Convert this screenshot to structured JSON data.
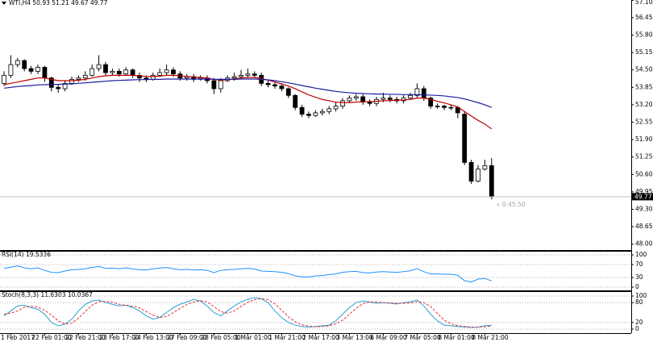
{
  "chart_data": [
    {
      "type": "candlestick",
      "title": "WTI,H4 50.93 51.21 49.67 49.77",
      "timer": "« 0:45:50",
      "categories": [
        null,
        "1 Feb 2017",
        null,
        null,
        null,
        null,
        "22 Feb 01:00",
        null,
        null,
        null,
        null,
        "22 Feb 21:00",
        null,
        null,
        null,
        null,
        "23 Feb 17:00",
        null,
        null,
        null,
        null,
        "24 Feb 13:00",
        null,
        null,
        null,
        null,
        "27 Feb 09:00",
        null,
        null,
        null,
        null,
        "28 Feb 05:00",
        null,
        null,
        null,
        null,
        "1 Mar 01:00",
        null,
        null,
        null,
        null,
        "1 Mar 21:00",
        null,
        null,
        null,
        null,
        "2 Mar 17:00",
        null,
        null,
        null,
        null,
        "3 Mar 13:00",
        null,
        null,
        null,
        null,
        "6 Mar 09:00",
        null,
        null,
        null,
        null,
        "7 Mar 05:00",
        null,
        null,
        null,
        null,
        "8 Mar 01:00",
        null,
        null,
        null,
        null,
        "8 Mar 21:00",
        null
      ],
      "open": [
        54.0,
        54.3,
        54.7,
        54.85,
        54.55,
        54.45,
        54.6,
        54.2,
        53.85,
        53.8,
        54.0,
        54.15,
        54.2,
        54.3,
        54.55,
        54.7,
        54.4,
        54.45,
        54.35,
        54.5,
        54.3,
        54.2,
        54.15,
        54.3,
        54.4,
        54.5,
        54.35,
        54.2,
        54.25,
        54.15,
        54.2,
        54.1,
        53.8,
        54.1,
        54.2,
        54.25,
        54.3,
        54.35,
        54.3,
        54.0,
        53.95,
        53.9,
        53.8,
        53.55,
        53.1,
        52.85,
        52.8,
        52.9,
        52.95,
        53.05,
        53.15,
        53.35,
        53.45,
        53.5,
        53.3,
        53.25,
        53.4,
        53.45,
        53.4,
        53.35,
        53.45,
        53.55,
        53.8,
        53.45,
        53.15,
        53.15,
        53.1,
        53.1,
        52.85,
        51.05,
        50.35,
        50.8,
        50.93
      ],
      "high": [
        54.45,
        55.05,
        54.95,
        54.9,
        54.65,
        54.7,
        54.65,
        54.25,
        53.95,
        54.1,
        54.25,
        54.3,
        54.45,
        54.7,
        55.05,
        54.8,
        54.55,
        54.55,
        54.6,
        54.55,
        54.4,
        54.3,
        54.4,
        54.55,
        54.7,
        54.6,
        54.45,
        54.35,
        54.35,
        54.3,
        54.3,
        54.2,
        54.2,
        54.3,
        54.4,
        54.5,
        54.55,
        54.45,
        54.4,
        54.1,
        54.05,
        54.0,
        53.85,
        53.6,
        53.2,
        52.95,
        53.0,
        53.05,
        53.15,
        53.3,
        53.45,
        53.55,
        53.6,
        53.6,
        53.4,
        53.5,
        53.65,
        53.55,
        53.5,
        53.55,
        53.65,
        54.0,
        53.9,
        53.5,
        53.25,
        53.2,
        53.2,
        53.15,
        52.95,
        51.15,
        50.95,
        51.15,
        51.21
      ],
      "low": [
        53.9,
        54.2,
        54.6,
        54.45,
        54.35,
        54.35,
        54.05,
        53.7,
        53.65,
        53.7,
        53.95,
        54.05,
        54.1,
        54.25,
        54.45,
        54.3,
        54.3,
        54.25,
        54.3,
        54.2,
        54.05,
        54.05,
        54.1,
        54.25,
        54.3,
        54.25,
        54.1,
        54.1,
        54.05,
        54.1,
        54.0,
        53.6,
        53.65,
        54.05,
        54.1,
        54.15,
        54.2,
        54.2,
        53.9,
        53.85,
        53.8,
        53.7,
        53.45,
        53.0,
        52.75,
        52.7,
        52.75,
        52.8,
        52.85,
        52.95,
        53.05,
        53.3,
        53.35,
        53.2,
        53.15,
        53.15,
        53.3,
        53.3,
        53.25,
        53.25,
        53.4,
        53.45,
        53.35,
        53.05,
        53.05,
        53.0,
        53.0,
        52.7,
        50.95,
        50.25,
        50.3,
        50.75,
        49.67
      ],
      "close": [
        54.3,
        54.7,
        54.85,
        54.55,
        54.45,
        54.6,
        54.2,
        53.85,
        53.8,
        54.0,
        54.15,
        54.2,
        54.3,
        54.55,
        54.7,
        54.4,
        54.45,
        54.35,
        54.5,
        54.3,
        54.2,
        54.15,
        54.3,
        54.4,
        54.5,
        54.35,
        54.2,
        54.25,
        54.15,
        54.2,
        54.1,
        53.8,
        54.1,
        54.2,
        54.25,
        54.3,
        54.35,
        54.3,
        54.0,
        53.95,
        53.9,
        53.8,
        53.55,
        53.1,
        52.85,
        52.8,
        52.9,
        52.95,
        53.05,
        53.15,
        53.35,
        53.45,
        53.5,
        53.3,
        53.25,
        53.4,
        53.45,
        53.4,
        53.35,
        53.45,
        53.55,
        53.8,
        53.45,
        53.15,
        53.15,
        53.1,
        53.1,
        52.9,
        51.05,
        50.35,
        50.8,
        50.93,
        49.77
      ],
      "series": [
        {
          "color": "#c00000",
          "values": [
            53.95,
            54.0,
            54.05,
            54.1,
            54.15,
            54.2,
            54.2,
            54.15,
            54.1,
            54.1,
            54.1,
            54.12,
            54.15,
            54.2,
            54.25,
            54.28,
            54.3,
            54.3,
            54.3,
            54.3,
            54.28,
            54.26,
            54.25,
            54.27,
            54.3,
            54.3,
            54.28,
            54.26,
            54.24,
            54.22,
            54.2,
            54.15,
            54.12,
            54.14,
            54.17,
            54.2,
            54.22,
            54.22,
            54.18,
            54.12,
            54.05,
            53.98,
            53.9,
            53.8,
            53.68,
            53.57,
            53.48,
            53.4,
            53.35,
            53.3,
            53.28,
            53.28,
            53.3,
            53.32,
            53.32,
            53.33,
            53.35,
            53.36,
            53.37,
            53.38,
            53.4,
            53.45,
            53.45,
            53.4,
            53.33,
            53.27,
            53.2,
            53.12,
            52.95,
            52.78,
            52.62,
            52.48,
            52.3
          ]
        },
        {
          "color": "#1c1ca0",
          "values": [
            53.82,
            53.85,
            53.88,
            53.9,
            53.92,
            53.94,
            53.95,
            53.96,
            53.96,
            53.97,
            53.98,
            54.0,
            54.02,
            54.04,
            54.06,
            54.08,
            54.1,
            54.11,
            54.12,
            54.13,
            54.14,
            54.14,
            54.15,
            54.15,
            54.16,
            54.16,
            54.16,
            54.16,
            54.16,
            54.16,
            54.16,
            54.15,
            54.15,
            54.15,
            54.15,
            54.16,
            54.16,
            54.16,
            54.15,
            54.13,
            54.1,
            54.06,
            54.02,
            53.97,
            53.92,
            53.87,
            53.82,
            53.78,
            53.74,
            53.7,
            53.67,
            53.65,
            53.63,
            53.62,
            53.61,
            53.6,
            53.6,
            53.59,
            53.59,
            53.58,
            53.58,
            53.58,
            53.57,
            53.56,
            53.55,
            53.53,
            53.5,
            53.47,
            53.42,
            53.35,
            53.28,
            53.2,
            53.1
          ]
        }
      ],
      "ylim": [
        47.78,
        57.11
      ],
      "yticks": [
        {
          "value": 57.1,
          "label": "57.10"
        },
        56.45,
        {
          "value": 55.8,
          "label": "55.80"
        },
        55.15,
        {
          "value": 54.5,
          "label": "54.50"
        },
        53.85,
        {
          "value": 53.2,
          "label": "53.20"
        },
        52.55,
        {
          "value": 51.9,
          "label": "51.90"
        },
        51.25,
        {
          "value": 50.6,
          "label": "50.60"
        },
        49.95,
        {
          "value": 49.3,
          "label": "49.30"
        },
        48.65,
        {
          "value": 48.0,
          "label": "48.00"
        }
      ]
    },
    {
      "type": "line",
      "title": "RSI(14) 19.5336",
      "series": [
        {
          "color": "#1e90ff",
          "values": [
            58,
            62,
            66,
            60,
            57,
            60,
            52,
            46,
            45,
            50,
            54,
            55,
            57,
            61,
            64,
            58,
            59,
            57,
            60,
            56,
            54,
            53,
            57,
            59,
            61,
            57,
            54,
            55,
            53,
            54,
            52,
            45,
            52,
            54,
            55,
            57,
            58,
            56,
            50,
            49,
            48,
            46,
            42,
            35,
            32,
            32,
            35,
            36,
            39,
            41,
            46,
            48,
            49,
            45,
            44,
            47,
            48,
            47,
            46,
            48,
            51,
            57,
            48,
            41,
            41,
            40,
            40,
            37,
            20,
            16,
            25,
            27,
            19.5336
          ]
        }
      ],
      "ylim": [
        -10,
        112.5
      ],
      "yticks": [
        100,
        70,
        30,
        0
      ]
    },
    {
      "type": "line",
      "title": "Stoch(8,3,3) 11.6303 10.0367",
      "series": [
        {
          "color": "#2a9fd6",
          "style": "solid",
          "values": [
            40,
            55,
            70,
            72,
            65,
            60,
            45,
            20,
            10,
            15,
            30,
            55,
            75,
            85,
            88,
            80,
            75,
            70,
            72,
            65,
            55,
            40,
            30,
            35,
            50,
            65,
            75,
            82,
            90,
            85,
            70,
            50,
            40,
            55,
            70,
            82,
            90,
            95,
            92,
            80,
            55,
            35,
            20,
            12,
            8,
            6,
            8,
            10,
            12,
            25,
            45,
            65,
            80,
            85,
            82,
            78,
            80,
            78,
            76,
            80,
            82,
            88,
            70,
            45,
            25,
            12,
            10,
            8,
            6,
            5,
            6,
            10,
            11.6303
          ]
        },
        {
          "color": "#e03030",
          "style": "dashed",
          "values": [
            45,
            48,
            55,
            66,
            69,
            66,
            57,
            42,
            25,
            15,
            18,
            33,
            53,
            72,
            83,
            84,
            81,
            75,
            72,
            69,
            64,
            53,
            42,
            35,
            38,
            50,
            63,
            74,
            82,
            86,
            82,
            68,
            53,
            48,
            55,
            69,
            81,
            89,
            92,
            89,
            76,
            57,
            37,
            22,
            13,
            9,
            7,
            8,
            10,
            16,
            27,
            45,
            63,
            77,
            82,
            82,
            80,
            79,
            78,
            78,
            79,
            83,
            80,
            68,
            47,
            27,
            16,
            10,
            8,
            6,
            6,
            7,
            10.0367
          ]
        }
      ],
      "ylim": [
        -12.2,
        114.6
      ],
      "yticks": [
        100,
        80,
        20,
        0
      ]
    }
  ]
}
